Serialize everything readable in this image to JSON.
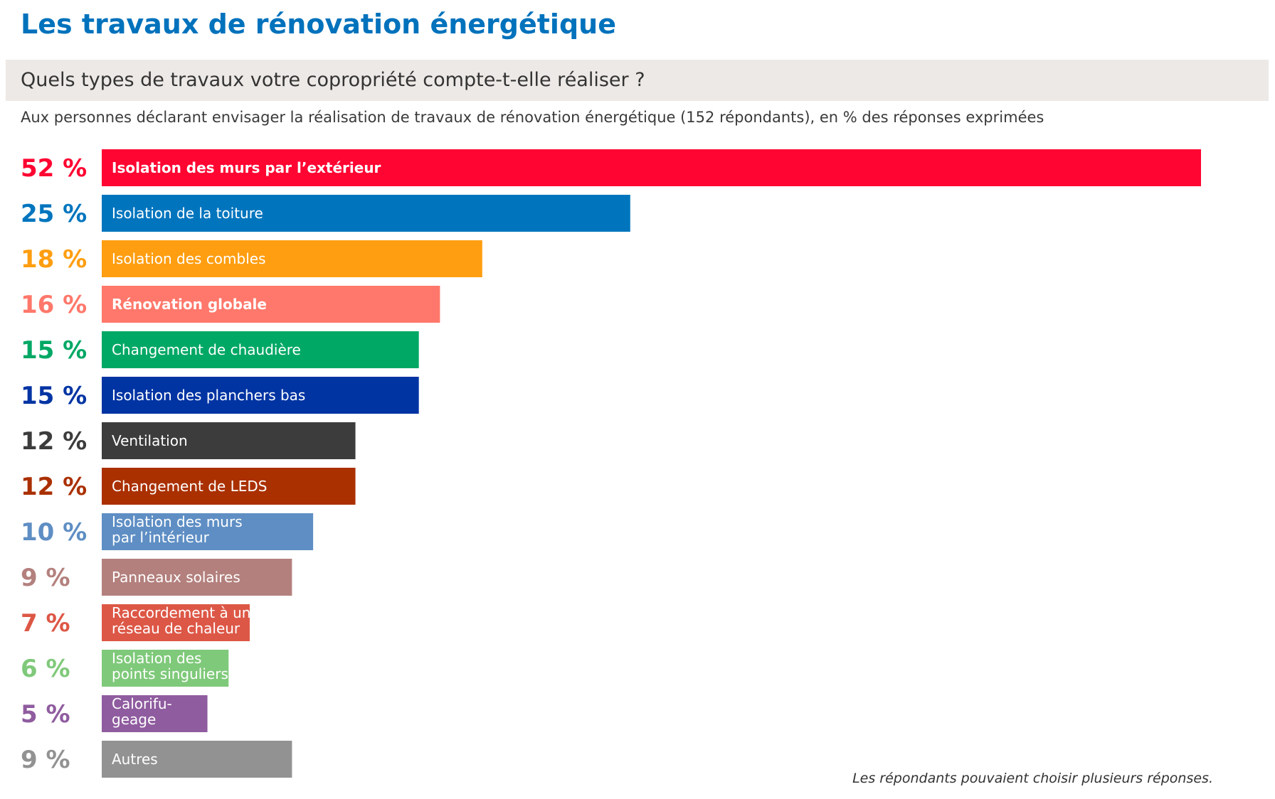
{
  "header": {
    "title": "Les travaux de rénovation énergétique",
    "question": "Quels types de travaux votre copropriété compte-t-elle réaliser ?",
    "subtitle": "Aux personnes déclarant envisager la réalisation de travaux de rénovation énergétique (152 répondants), en % des réponses exprimées"
  },
  "footnote": "Les répondants pouvaient choisir plusieurs réponses.",
  "chart_data": {
    "type": "bar",
    "orientation": "horizontal",
    "value_suffix": " %",
    "xlim": [
      0,
      52
    ],
    "grid": false,
    "legend": "none",
    "categories": [
      "Isolation des murs par l’extérieur",
      "Isolation de la toiture",
      "Isolation des combles",
      "Rénovation globale",
      "Changement de chaudière",
      "Isolation des planchers bas",
      "Ventilation",
      "Changement de LEDS",
      "Isolation des murs\npar l’intérieur",
      "Panneaux solaires",
      "Raccordement à un\nréseau de chaleur",
      "Isolation des\npoints singuliers",
      "Calorifu-\ngeage",
      "Autres"
    ],
    "values": [
      52,
      25,
      18,
      16,
      15,
      15,
      12,
      12,
      10,
      9,
      7,
      6,
      5,
      9
    ],
    "colors": [
      "#ff0532",
      "#0075be",
      "#ff9e11",
      "#ff786b",
      "#00a865",
      "#0034a3",
      "#3c3c3c",
      "#aa3000",
      "#5e8ec4",
      "#b3807d",
      "#dd5746",
      "#7fc97a",
      "#8f5c9f",
      "#929292"
    ],
    "bold_labels": [
      true,
      false,
      false,
      true,
      false,
      false,
      false,
      false,
      false,
      false,
      false,
      false,
      false,
      false
    ]
  }
}
